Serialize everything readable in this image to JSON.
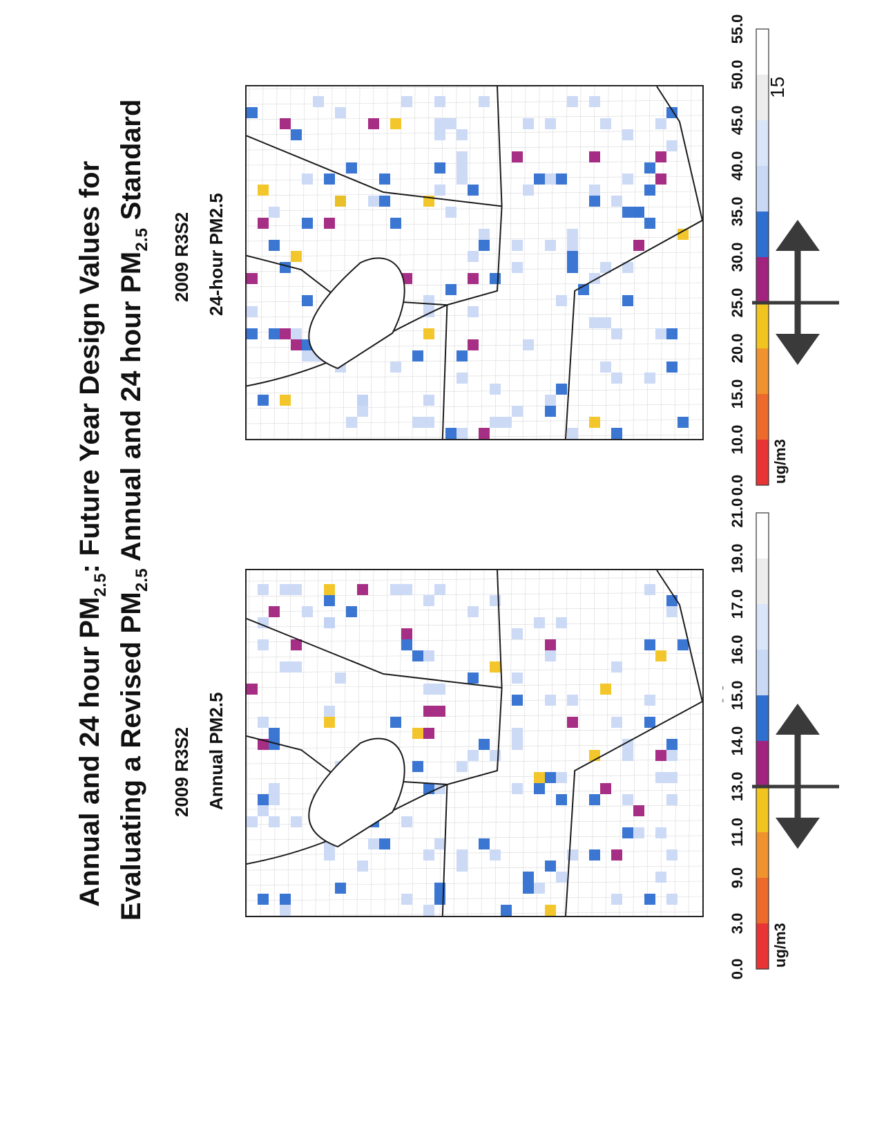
{
  "title": {
    "line1_pre": "Annual and 24 hour PM",
    "line1_sub": "2.5",
    "line1_post": ": Future Year Design Values for",
    "line2_pre": "Evaluating a Revised PM",
    "line2_sub1": "2.5",
    "line2_mid": " Annual and 24 hour PM",
    "line2_sub2": "2.5",
    "line2_post": " Standard"
  },
  "maps": [
    {
      "id": "annual",
      "scenario": "2009 R3S2",
      "metric": "Annual PM2.5",
      "standard": "15.0",
      "colorbar": {
        "ticks": [
          "21.0",
          "19.0",
          "17.0",
          "16.0",
          "15.0",
          "14.0",
          "13.0",
          "11.0",
          "9.0",
          "3.0",
          "0.0"
        ],
        "unit": "ug/m3"
      }
    },
    {
      "id": "daily",
      "scenario": "2009 R3S2",
      "metric": "24-hour PM2.5",
      "standard": "35.0",
      "colorbar": {
        "ticks": [
          "55.0",
          "50.0",
          "45.0",
          "40.0",
          "35.0",
          "30.0",
          "25.0",
          "20.0",
          "15.0",
          "10.0",
          "0.0"
        ],
        "unit": "ug/m3"
      }
    }
  ],
  "colorbar_colors": [
    "#e83434",
    "#ec6a2c",
    "#f0932e",
    "#f2c420",
    "#a2237e",
    "#2f6fd0",
    "#c9d8f5",
    "#d9e5f8",
    "#ececec",
    "#ffffff"
  ],
  "page_number": "15",
  "dash_marks": "- -"
}
